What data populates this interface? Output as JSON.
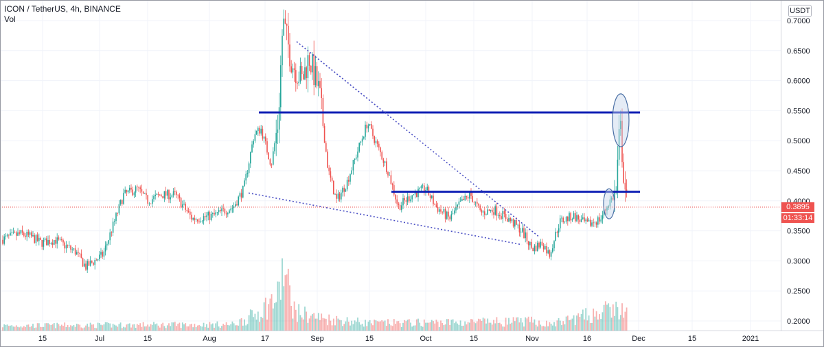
{
  "header": {
    "title": "ICON / TetherUS, 4h, BINANCE",
    "volume_label": "Vol"
  },
  "currency_button": "USDT",
  "last_price": {
    "price_label": "0.3895",
    "countdown_label": "01:33:14",
    "color": "#ef5350"
  },
  "colors": {
    "up": "#26a69a",
    "down": "#ef5350",
    "trendline": "#0d1eb4",
    "dotted": "#4a4fc4",
    "grid": "#f0f3fa",
    "ellipse_stroke": "#4a6fa5",
    "ellipse_fill": "#c5d5ea"
  },
  "chart_data": {
    "type": "candlestick",
    "title": "ICON / TetherUS, 4h, BINANCE",
    "y_axis": {
      "ticks": [
        "0.7000",
        "0.6500",
        "0.6000",
        "0.5500",
        "0.5000",
        "0.4500",
        "0.4000",
        "0.3500",
        "0.3000",
        "0.2500",
        "0.2000"
      ],
      "ylim": [
        0.19,
        0.77
      ]
    },
    "x_axis": {
      "ticks": [
        "15",
        "Jul",
        "15",
        "Aug",
        "17",
        "Sep",
        "15",
        "Oct",
        "15",
        "Nov",
        "16",
        "Dec",
        "15",
        "2021"
      ]
    },
    "price_path": [
      {
        "x": 0,
        "y": 0.335
      },
      {
        "x": 30,
        "y": 0.345
      },
      {
        "x": 45,
        "y": 0.34
      },
      {
        "x": 60,
        "y": 0.33
      },
      {
        "x": 80,
        "y": 0.335
      },
      {
        "x": 110,
        "y": 0.315
      },
      {
        "x": 125,
        "y": 0.29
      },
      {
        "x": 150,
        "y": 0.31
      },
      {
        "x": 165,
        "y": 0.36
      },
      {
        "x": 180,
        "y": 0.41
      },
      {
        "x": 200,
        "y": 0.42
      },
      {
        "x": 215,
        "y": 0.4
      },
      {
        "x": 235,
        "y": 0.41
      },
      {
        "x": 255,
        "y": 0.41
      },
      {
        "x": 280,
        "y": 0.37
      },
      {
        "x": 310,
        "y": 0.375
      },
      {
        "x": 340,
        "y": 0.39
      },
      {
        "x": 355,
        "y": 0.42
      },
      {
        "x": 370,
        "y": 0.51
      },
      {
        "x": 380,
        "y": 0.52
      },
      {
        "x": 395,
        "y": 0.46
      },
      {
        "x": 405,
        "y": 0.53
      },
      {
        "x": 412,
        "y": 0.7
      },
      {
        "x": 425,
        "y": 0.63
      },
      {
        "x": 440,
        "y": 0.6
      },
      {
        "x": 450,
        "y": 0.64
      },
      {
        "x": 465,
        "y": 0.58
      },
      {
        "x": 478,
        "y": 0.45
      },
      {
        "x": 490,
        "y": 0.4
      },
      {
        "x": 505,
        "y": 0.43
      },
      {
        "x": 520,
        "y": 0.48
      },
      {
        "x": 535,
        "y": 0.53
      },
      {
        "x": 550,
        "y": 0.49
      },
      {
        "x": 565,
        "y": 0.45
      },
      {
        "x": 580,
        "y": 0.39
      },
      {
        "x": 600,
        "y": 0.41
      },
      {
        "x": 620,
        "y": 0.42
      },
      {
        "x": 635,
        "y": 0.39
      },
      {
        "x": 655,
        "y": 0.37
      },
      {
        "x": 670,
        "y": 0.395
      },
      {
        "x": 685,
        "y": 0.41
      },
      {
        "x": 700,
        "y": 0.38
      },
      {
        "x": 720,
        "y": 0.385
      },
      {
        "x": 740,
        "y": 0.37
      },
      {
        "x": 760,
        "y": 0.35
      },
      {
        "x": 775,
        "y": 0.32
      },
      {
        "x": 790,
        "y": 0.33
      },
      {
        "x": 800,
        "y": 0.31
      },
      {
        "x": 815,
        "y": 0.365
      },
      {
        "x": 835,
        "y": 0.375
      },
      {
        "x": 855,
        "y": 0.36
      },
      {
        "x": 875,
        "y": 0.37
      },
      {
        "x": 888,
        "y": 0.4
      },
      {
        "x": 897,
        "y": 0.41
      },
      {
        "x": 903,
        "y": 0.53
      },
      {
        "x": 908,
        "y": 0.45
      },
      {
        "x": 913,
        "y": 0.39
      }
    ],
    "volume_profile": [
      {
        "x": 0,
        "v": 0.08
      },
      {
        "x": 340,
        "v": 0.1
      },
      {
        "x": 370,
        "v": 0.25
      },
      {
        "x": 405,
        "v": 0.55
      },
      {
        "x": 412,
        "v": 1.0
      },
      {
        "x": 430,
        "v": 0.3
      },
      {
        "x": 470,
        "v": 0.2
      },
      {
        "x": 540,
        "v": 0.12
      },
      {
        "x": 780,
        "v": 0.15
      },
      {
        "x": 800,
        "v": 0.1
      },
      {
        "x": 895,
        "v": 0.35
      },
      {
        "x": 913,
        "v": 0.3
      }
    ],
    "drawings": {
      "horizontal_lines": [
        {
          "x1": 377,
          "x2": 932,
          "y": 0.547
        },
        {
          "x1": 570,
          "x2": 932,
          "y": 0.415
        }
      ],
      "dotted_lines": [
        {
          "x1": 432,
          "y1": 0.665,
          "x2": 785,
          "y2": 0.34
        },
        {
          "x1": 362,
          "y1": 0.413,
          "x2": 760,
          "y2": 0.327
        }
      ],
      "ellipses": [
        {
          "cx": 904,
          "cy": 0.534,
          "rx": 12,
          "ry": 0.044
        },
        {
          "cx": 887,
          "cy": 0.395,
          "rx": 8,
          "ry": 0.025
        }
      ]
    },
    "last_price_value": 0.3895
  }
}
